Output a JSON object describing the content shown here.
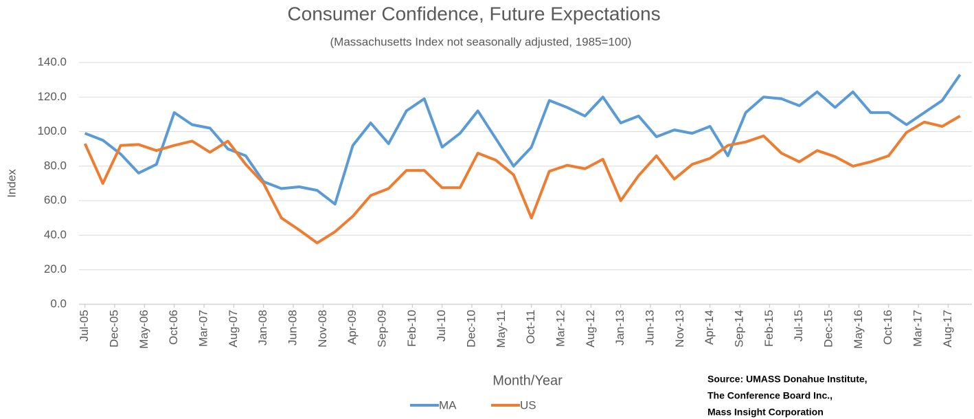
{
  "chart_data": {
    "type": "line",
    "title": "Consumer Confidence, Future Expectations",
    "subtitle": "(Massachusetts Index not seasonally adjusted, 1985=100)",
    "xlabel": "Month/Year",
    "ylabel": "Index",
    "annotation": [
      "Source:  UMASS Donahue Institute,",
      "The  Conference Board Inc.,",
      "Mass Insight Corporation"
    ],
    "x": [
      "2005-07",
      "2005-10",
      "2006-01",
      "2006-04",
      "2006-07",
      "2006-10",
      "2007-01",
      "2007-04",
      "2007-07",
      "2007-10",
      "2008-01",
      "2008-04",
      "2008-07",
      "2008-10",
      "2009-01",
      "2009-04",
      "2009-07",
      "2009-10",
      "2010-01",
      "2010-04",
      "2010-07",
      "2010-10",
      "2011-01",
      "2011-04",
      "2011-07",
      "2011-10",
      "2012-01",
      "2012-04",
      "2012-07",
      "2012-10",
      "2013-01",
      "2013-04",
      "2013-07",
      "2013-10",
      "2014-01",
      "2014-04",
      "2014-07",
      "2014-10",
      "2015-01",
      "2015-04",
      "2015-07",
      "2015-10",
      "2016-01",
      "2016-04",
      "2016-07",
      "2016-10",
      "2017-01",
      "2017-04",
      "2017-07",
      "2017-10"
    ],
    "series": [
      {
        "name": "MA",
        "color": "#5b9bd5",
        "values": [
          99,
          95,
          87,
          76,
          81,
          111,
          104,
          102,
          90,
          86,
          71,
          67,
          68,
          66,
          58,
          92,
          105,
          93,
          112,
          119,
          91,
          99,
          112,
          96,
          80,
          91,
          118,
          114,
          109,
          120,
          105,
          109,
          97,
          101,
          99,
          103,
          86,
          111,
          120,
          119,
          115,
          123,
          114,
          123,
          111,
          111,
          104,
          111,
          118,
          133
        ]
      },
      {
        "name": "US",
        "color": "#ed7d31",
        "values": [
          93,
          70,
          92,
          92.5,
          89,
          92,
          94.5,
          88,
          94.5,
          81,
          70,
          50,
          43,
          35.5,
          42,
          51,
          63,
          67,
          77.5,
          77.5,
          67.5,
          67.5,
          87.5,
          83.5,
          75,
          50,
          77,
          80.5,
          78.5,
          84,
          60,
          74.5,
          86,
          72.5,
          81,
          84.5,
          92,
          94,
          97.5,
          87.5,
          82.5,
          89,
          85.5,
          80,
          82.5,
          86,
          99.5,
          105.5,
          103,
          109
        ]
      }
    ],
    "xlim": [
      "2005-06",
      "2017-12"
    ],
    "xticks": [
      {
        "value": "2005-07",
        "label": "Jul-05"
      },
      {
        "value": "2005-12",
        "label": "Dec-05"
      },
      {
        "value": "2006-05",
        "label": "May-06"
      },
      {
        "value": "2006-10",
        "label": "Oct-06"
      },
      {
        "value": "2007-03",
        "label": "Mar-07"
      },
      {
        "value": "2007-08",
        "label": "Aug-07"
      },
      {
        "value": "2008-01",
        "label": "Jan-08"
      },
      {
        "value": "2008-06",
        "label": "Jun-08"
      },
      {
        "value": "2008-11",
        "label": "Nov-08"
      },
      {
        "value": "2009-04",
        "label": "Apr-09"
      },
      {
        "value": "2009-09",
        "label": "Sep-09"
      },
      {
        "value": "2010-02",
        "label": "Feb-10"
      },
      {
        "value": "2010-07",
        "label": "Jul-10"
      },
      {
        "value": "2010-12",
        "label": "Dec-10"
      },
      {
        "value": "2011-05",
        "label": "May-11"
      },
      {
        "value": "2011-10",
        "label": "Oct-11"
      },
      {
        "value": "2012-03",
        "label": "Mar-12"
      },
      {
        "value": "2012-08",
        "label": "Aug-12"
      },
      {
        "value": "2013-01",
        "label": "Jan-13"
      },
      {
        "value": "2013-06",
        "label": "Jun-13"
      },
      {
        "value": "2013-11",
        "label": "Nov-13"
      },
      {
        "value": "2014-04",
        "label": "Apr-14"
      },
      {
        "value": "2014-09",
        "label": "Sep-14"
      },
      {
        "value": "2015-02",
        "label": "Feb-15"
      },
      {
        "value": "2015-07",
        "label": "Jul-15"
      },
      {
        "value": "2015-12",
        "label": "Dec-15"
      },
      {
        "value": "2016-05",
        "label": "May-16"
      },
      {
        "value": "2016-10",
        "label": "Oct-16"
      },
      {
        "value": "2017-03",
        "label": "Mar-17"
      },
      {
        "value": "2017-08",
        "label": "Aug-17"
      }
    ],
    "ylim": [
      0,
      140
    ],
    "yticks": [
      {
        "value": 0,
        "label": "0.0"
      },
      {
        "value": 20,
        "label": "20.0"
      },
      {
        "value": 40,
        "label": "40.0"
      },
      {
        "value": 60,
        "label": "60.0"
      },
      {
        "value": 80,
        "label": "80.0"
      },
      {
        "value": 100,
        "label": "100.0"
      },
      {
        "value": 120,
        "label": "120.0"
      },
      {
        "value": 140,
        "label": "140.0"
      }
    ],
    "grid": true,
    "legend": "bottom"
  }
}
